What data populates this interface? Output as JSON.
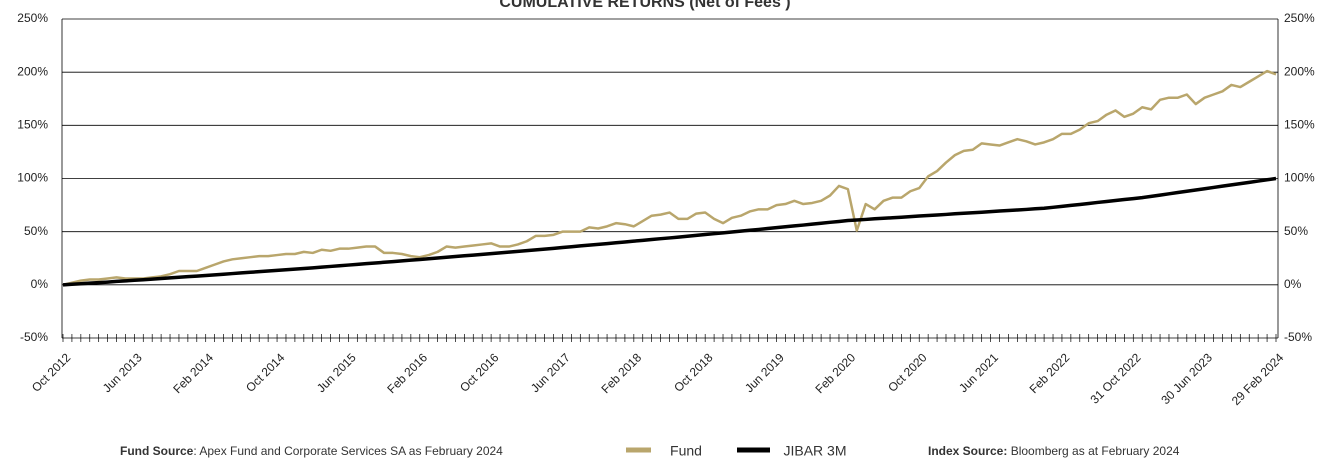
{
  "chart_data": {
    "type": "line",
    "title": "CUMULATIVE RETURNS (Net of Fees )",
    "categories": [
      "Oct 2012",
      null,
      null,
      null,
      null,
      null,
      null,
      null,
      "Jun 2013",
      null,
      null,
      null,
      null,
      null,
      null,
      null,
      "Feb 2014",
      null,
      null,
      null,
      null,
      null,
      null,
      null,
      "Oct 2014",
      null,
      null,
      null,
      null,
      null,
      null,
      null,
      "Jun 2015",
      null,
      null,
      null,
      null,
      null,
      null,
      null,
      "Feb 2016",
      null,
      null,
      null,
      null,
      null,
      null,
      null,
      "Oct 2016",
      null,
      null,
      null,
      null,
      null,
      null,
      null,
      "Jun 2017",
      null,
      null,
      null,
      null,
      null,
      null,
      null,
      "Feb 2018",
      null,
      null,
      null,
      null,
      null,
      null,
      null,
      "Oct 2018",
      null,
      null,
      null,
      null,
      null,
      null,
      null,
      "Jun 2019",
      null,
      null,
      null,
      null,
      null,
      null,
      null,
      "Feb 2020",
      null,
      null,
      null,
      null,
      null,
      null,
      null,
      "Oct 2020",
      null,
      null,
      null,
      null,
      null,
      null,
      null,
      "Jun 2021",
      null,
      null,
      null,
      null,
      null,
      null,
      null,
      "Feb 2022",
      null,
      null,
      null,
      null,
      null,
      null,
      null,
      "31 Oct 2022",
      null,
      null,
      null,
      null,
      null,
      null,
      null,
      "30 Jun 2023",
      null,
      null,
      null,
      null,
      null,
      null,
      null,
      "29 Feb 2024"
    ],
    "series": [
      {
        "name": "Fund",
        "color": "#b9a66c",
        "width": 2.5,
        "values": [
          0,
          2,
          4,
          5,
          5,
          6,
          7,
          6,
          6,
          6,
          7,
          8,
          10,
          13,
          13,
          13,
          16,
          19,
          22,
          24,
          25,
          26,
          27,
          27,
          28,
          29,
          29,
          31,
          30,
          33,
          32,
          34,
          34,
          35,
          36,
          36,
          30,
          30,
          29,
          27,
          26,
          28,
          31,
          36,
          35,
          36,
          37,
          38,
          39,
          36,
          36,
          38,
          41,
          46,
          46,
          47,
          50,
          50,
          50,
          54,
          53,
          55,
          58,
          57,
          55,
          60,
          65,
          66,
          68,
          62,
          62,
          67,
          68,
          62,
          58,
          63,
          65,
          69,
          71,
          71,
          75,
          76,
          79,
          76,
          77,
          79,
          84,
          93,
          90,
          51,
          76,
          71,
          79,
          82,
          82,
          88,
          91,
          102,
          107,
          115,
          122,
          126,
          127,
          133,
          132,
          131,
          134,
          137,
          135,
          132,
          134,
          137,
          142,
          142,
          146,
          152,
          154,
          160,
          164,
          158,
          161,
          167,
          165,
          174,
          176,
          176,
          179,
          170,
          176,
          179,
          182,
          188,
          186,
          191,
          196,
          201,
          198
        ]
      },
      {
        "name": "JIBAR 3M",
        "color": "#000000",
        "width": 3.5,
        "values": [
          0,
          0.5,
          1.0,
          1.6,
          2.1,
          2.6,
          3.2,
          3.7,
          4.3,
          4.8,
          5.4,
          6.0,
          6.5,
          7.1,
          7.7,
          8.2,
          8.8,
          9.4,
          10.0,
          10.6,
          11.2,
          11.8,
          12.4,
          13.0,
          13.6,
          14.2,
          14.8,
          15.4,
          16.0,
          16.7,
          17.3,
          17.9,
          18.6,
          19.2,
          19.9,
          20.5,
          21.2,
          21.8,
          22.5,
          23.2,
          23.8,
          24.5,
          25.2,
          25.9,
          26.6,
          27.3,
          27.9,
          28.6,
          29.3,
          30.0,
          30.8,
          31.5,
          32.2,
          32.9,
          33.6,
          34.3,
          35.1,
          35.8,
          36.6,
          37.3,
          38.0,
          38.8,
          39.6,
          40.3,
          41.1,
          41.8,
          42.6,
          43.4,
          44.1,
          44.9,
          45.7,
          46.5,
          47.3,
          48.1,
          48.9,
          49.7,
          50.5,
          51.3,
          52.1,
          53.0,
          53.8,
          54.6,
          55.4,
          56.2,
          57.1,
          57.9,
          58.8,
          59.6,
          60.5,
          61.0,
          61.5,
          62.1,
          62.6,
          63.1,
          63.6,
          64.2,
          64.7,
          65.2,
          65.7,
          66.2,
          66.8,
          67.3,
          67.8,
          68.3,
          68.9,
          69.4,
          69.9,
          70.4,
          70.9,
          71.5,
          72.0,
          72.9,
          73.8,
          74.7,
          75.6,
          76.5,
          77.5,
          78.4,
          79.3,
          80.2,
          81.1,
          82.0,
          83.2,
          84.4,
          85.6,
          86.8,
          88.0,
          89.2,
          90.4,
          91.6,
          92.8,
          94.0,
          95.2,
          96.4,
          97.6,
          98.8,
          100.0
        ]
      }
    ],
    "ylim": [
      -50,
      250
    ],
    "yticks": [
      {
        "value": -50,
        "label": "-50%"
      },
      {
        "value": 0,
        "label": "0%"
      },
      {
        "value": 50,
        "label": "50%"
      },
      {
        "value": 100,
        "label": "100%"
      },
      {
        "value": 150,
        "label": "150%"
      },
      {
        "value": 200,
        "label": "200%"
      },
      {
        "value": 250,
        "label": "250%"
      }
    ],
    "grid": true
  },
  "footer": {
    "fund_source": {
      "label": "Fund Source",
      "text": ": Apex Fund and Corporate Services SA as February 2024"
    },
    "index_source": {
      "label": "Index Source:",
      "text": " Bloomberg as at February 2024"
    }
  }
}
